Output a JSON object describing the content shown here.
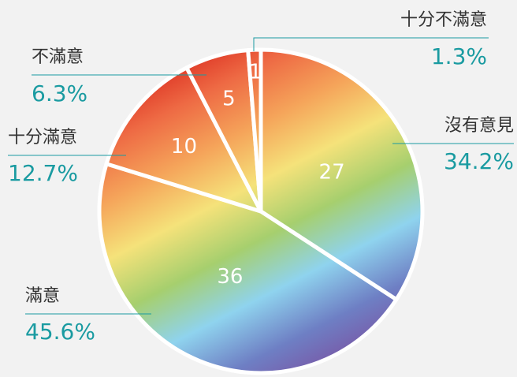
{
  "chart_data": {
    "type": "pie",
    "categories": [
      "沒有意見",
      "滿意",
      "十分滿意",
      "不滿意",
      "十分不滿意"
    ],
    "values": [
      27,
      36,
      10,
      5,
      1
    ],
    "percent_labels": [
      "34.2%",
      "45.6%",
      "12.7%",
      "6.3%",
      "1.3%"
    ],
    "colors": [
      "#d9261c",
      "#ee6a44",
      "#f5a45a",
      "#f5e27a",
      "#a6cf6e",
      "#8fd3ee",
      "#6e7fc4",
      "#7b4fa0"
    ]
  }
}
